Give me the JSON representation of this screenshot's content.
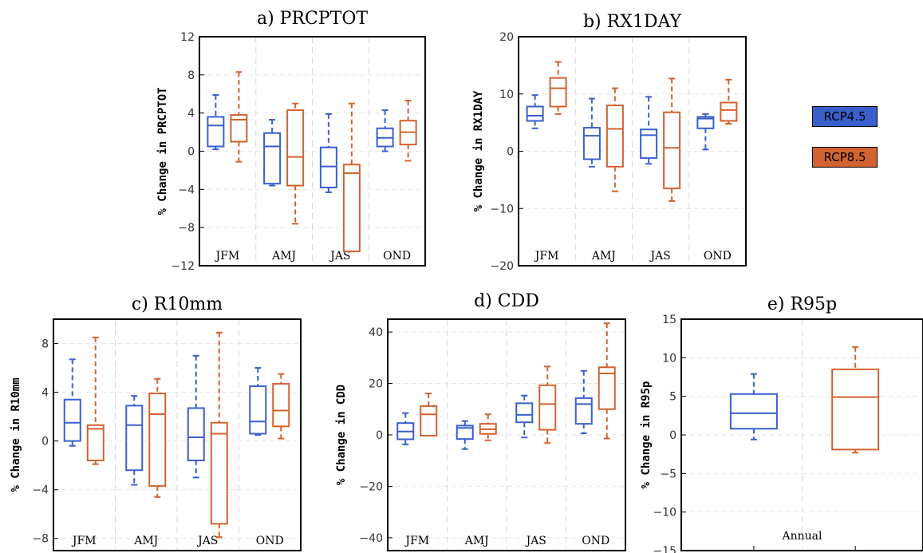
{
  "legend": {
    "items": [
      {
        "label": "RCP4.5",
        "color": "#3a5fcd"
      },
      {
        "label": "RCP8.5",
        "color": "#d2622f"
      }
    ]
  },
  "chart_data": [
    {
      "type": "box",
      "title": "a) PRCPTOT",
      "ylabel": "% Change in PRCPTOT",
      "ylim": [
        -12,
        12
      ],
      "yticks": [
        12,
        8,
        4,
        0,
        -4,
        -8,
        -12
      ],
      "categories": [
        "JFM",
        "AMJ",
        "JAS",
        "OND"
      ],
      "series": [
        {
          "name": "RCP4.5",
          "boxes": [
            {
              "min": 0.2,
              "q1": 0.5,
              "median": 2.7,
              "q3": 3.6,
              "max": 5.9
            },
            {
              "min": -3.6,
              "q1": -3.4,
              "median": 0.5,
              "q3": 1.9,
              "max": 3.3
            },
            {
              "min": -4.3,
              "q1": -3.8,
              "median": -1.6,
              "q3": 0.4,
              "max": 3.9
            },
            {
              "min": 0.0,
              "q1": 0.5,
              "median": 1.4,
              "q3": 2.4,
              "max": 4.3
            }
          ]
        },
        {
          "name": "RCP8.5",
          "boxes": [
            {
              "min": -1.1,
              "q1": 1.0,
              "median": 3.3,
              "q3": 3.8,
              "max": 8.3
            },
            {
              "min": -7.6,
              "q1": -3.6,
              "median": -0.6,
              "q3": 4.3,
              "max": 5.0
            },
            {
              "min": -10.5,
              "q1": -10.5,
              "median": -2.3,
              "q3": -1.4,
              "max": 5.0
            },
            {
              "min": -1.0,
              "q1": 0.7,
              "median": 2.0,
              "q3": 3.2,
              "max": 5.3
            }
          ]
        }
      ]
    },
    {
      "type": "box",
      "title": "b) RX1DAY",
      "ylabel": "% Change in RX1DAY",
      "ylim": [
        -20,
        20
      ],
      "yticks": [
        20,
        10,
        0,
        -10,
        -20
      ],
      "categories": [
        "JFM",
        "AMJ",
        "JAS",
        "OND"
      ],
      "series": [
        {
          "name": "RCP4.5",
          "boxes": [
            {
              "min": 4.0,
              "q1": 5.3,
              "median": 6.2,
              "q3": 7.8,
              "max": 9.8
            },
            {
              "min": -2.7,
              "q1": -1.4,
              "median": 2.7,
              "q3": 4.1,
              "max": 9.2
            },
            {
              "min": -2.2,
              "q1": -1.2,
              "median": 2.8,
              "q3": 3.8,
              "max": 9.5
            },
            {
              "min": 0.3,
              "q1": 4.0,
              "median": 5.7,
              "q3": 6.0,
              "max": 6.5
            }
          ]
        },
        {
          "name": "RCP8.5",
          "boxes": [
            {
              "min": 6.5,
              "q1": 7.8,
              "median": 11.0,
              "q3": 12.8,
              "max": 15.6
            },
            {
              "min": -7.0,
              "q1": -2.7,
              "median": 3.9,
              "q3": 8.0,
              "max": 11.0
            },
            {
              "min": -8.7,
              "q1": -6.5,
              "median": 0.6,
              "q3": 6.8,
              "max": 12.7
            },
            {
              "min": 4.8,
              "q1": 5.3,
              "median": 7.2,
              "q3": 8.5,
              "max": 12.5
            }
          ]
        }
      ]
    },
    {
      "type": "box",
      "title": "c) R10mm",
      "ylabel": "% Change in R10mm",
      "ylim": [
        -9,
        10
      ],
      "yticks": [
        8,
        4,
        0,
        -4,
        -8
      ],
      "categories": [
        "JFM",
        "AMJ",
        "JAS",
        "OND"
      ],
      "series": [
        {
          "name": "RCP4.5",
          "boxes": [
            {
              "min": -0.4,
              "q1": 0.0,
              "median": 1.5,
              "q3": 3.4,
              "max": 6.7
            },
            {
              "min": -3.6,
              "q1": -2.4,
              "median": 1.3,
              "q3": 2.9,
              "max": 3.7
            },
            {
              "min": -3.0,
              "q1": -1.6,
              "median": 0.3,
              "q3": 2.7,
              "max": 7.0
            },
            {
              "min": 0.5,
              "q1": 0.6,
              "median": 1.6,
              "q3": 4.5,
              "max": 6.0
            }
          ]
        },
        {
          "name": "RCP8.5",
          "boxes": [
            {
              "min": -1.9,
              "q1": -1.6,
              "median": 1.0,
              "q3": 1.3,
              "max": 8.5
            },
            {
              "min": -4.6,
              "q1": -3.7,
              "median": 2.2,
              "q3": 3.9,
              "max": 5.1
            },
            {
              "min": -7.9,
              "q1": -6.8,
              "median": 0.6,
              "q3": 1.5,
              "max": 8.9
            },
            {
              "min": 0.2,
              "q1": 1.2,
              "median": 2.5,
              "q3": 4.7,
              "max": 5.5
            }
          ]
        }
      ]
    },
    {
      "type": "box",
      "title": "d) CDD",
      "ylabel": "% Change in CDD",
      "ylim": [
        -45,
        45
      ],
      "yticks": [
        40,
        20,
        0,
        -20,
        -40
      ],
      "categories": [
        "JFM",
        "AMJ",
        "JAS",
        "OND"
      ],
      "series": [
        {
          "name": "RCP4.5",
          "boxes": [
            {
              "min": -3.7,
              "q1": -1.7,
              "median": 1.3,
              "q3": 4.6,
              "max": 8.5
            },
            {
              "min": -5.5,
              "q1": -1.6,
              "median": 2.7,
              "q3": 3.6,
              "max": 5.4
            },
            {
              "min": -1.0,
              "q1": 4.9,
              "median": 7.8,
              "q3": 12.3,
              "max": 15.3
            },
            {
              "min": 0.6,
              "q1": 4.3,
              "median": 12.0,
              "q3": 14.3,
              "max": 24.9
            }
          ]
        },
        {
          "name": "RCP8.5",
          "boxes": [
            {
              "min": -0.3,
              "q1": -0.3,
              "median": 8.0,
              "q3": 11.2,
              "max": 16.1
            },
            {
              "min": -2.1,
              "q1": 0.4,
              "median": 2.2,
              "q3": 4.3,
              "max": 8.0
            },
            {
              "min": -3.2,
              "q1": 2.0,
              "median": 12.0,
              "q3": 19.3,
              "max": 26.6
            },
            {
              "min": -1.4,
              "q1": 10.0,
              "median": 23.9,
              "q3": 26.3,
              "max": 43.4
            }
          ]
        }
      ]
    },
    {
      "type": "box",
      "title": "e) R95p",
      "ylabel": "% Change in R95p",
      "ylim": [
        -15,
        15
      ],
      "yticks": [
        15,
        10,
        5,
        0,
        -5,
        -10,
        -15
      ],
      "categories": [
        "Annual"
      ],
      "series": [
        {
          "name": "RCP4.5",
          "boxes": [
            {
              "min": -0.6,
              "q1": 0.8,
              "median": 2.8,
              "q3": 5.3,
              "max": 7.9
            }
          ]
        },
        {
          "name": "RCP8.5",
          "boxes": [
            {
              "min": -2.3,
              "q1": -1.9,
              "median": 4.9,
              "q3": 8.5,
              "max": 11.4
            }
          ]
        }
      ]
    }
  ]
}
